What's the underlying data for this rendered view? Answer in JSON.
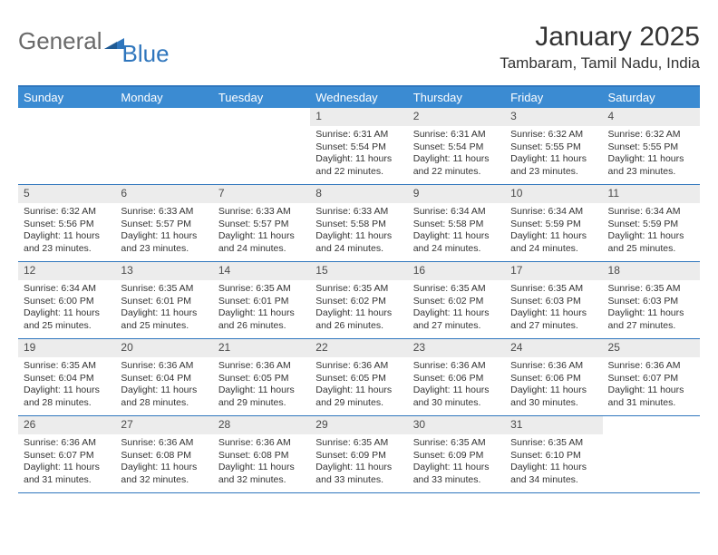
{
  "brand": {
    "word1": "General",
    "word2": "Blue"
  },
  "title": "January 2025",
  "location": "Tambaram, Tamil Nadu, India",
  "colors": {
    "header_bg": "#3b8bd2",
    "header_text": "#ffffff",
    "rule": "#2f76bd",
    "daynum_bg": "#ececec",
    "text": "#333333",
    "logo_grey": "#6a6a6a",
    "logo_blue": "#2f76bd"
  },
  "day_names": [
    "Sunday",
    "Monday",
    "Tuesday",
    "Wednesday",
    "Thursday",
    "Friday",
    "Saturday"
  ],
  "weeks": [
    [
      {
        "n": "",
        "sr": "",
        "ss": "",
        "dl": ""
      },
      {
        "n": "",
        "sr": "",
        "ss": "",
        "dl": ""
      },
      {
        "n": "",
        "sr": "",
        "ss": "",
        "dl": ""
      },
      {
        "n": "1",
        "sr": "Sunrise: 6:31 AM",
        "ss": "Sunset: 5:54 PM",
        "dl": "Daylight: 11 hours and 22 minutes."
      },
      {
        "n": "2",
        "sr": "Sunrise: 6:31 AM",
        "ss": "Sunset: 5:54 PM",
        "dl": "Daylight: 11 hours and 22 minutes."
      },
      {
        "n": "3",
        "sr": "Sunrise: 6:32 AM",
        "ss": "Sunset: 5:55 PM",
        "dl": "Daylight: 11 hours and 23 minutes."
      },
      {
        "n": "4",
        "sr": "Sunrise: 6:32 AM",
        "ss": "Sunset: 5:55 PM",
        "dl": "Daylight: 11 hours and 23 minutes."
      }
    ],
    [
      {
        "n": "5",
        "sr": "Sunrise: 6:32 AM",
        "ss": "Sunset: 5:56 PM",
        "dl": "Daylight: 11 hours and 23 minutes."
      },
      {
        "n": "6",
        "sr": "Sunrise: 6:33 AM",
        "ss": "Sunset: 5:57 PM",
        "dl": "Daylight: 11 hours and 23 minutes."
      },
      {
        "n": "7",
        "sr": "Sunrise: 6:33 AM",
        "ss": "Sunset: 5:57 PM",
        "dl": "Daylight: 11 hours and 24 minutes."
      },
      {
        "n": "8",
        "sr": "Sunrise: 6:33 AM",
        "ss": "Sunset: 5:58 PM",
        "dl": "Daylight: 11 hours and 24 minutes."
      },
      {
        "n": "9",
        "sr": "Sunrise: 6:34 AM",
        "ss": "Sunset: 5:58 PM",
        "dl": "Daylight: 11 hours and 24 minutes."
      },
      {
        "n": "10",
        "sr": "Sunrise: 6:34 AM",
        "ss": "Sunset: 5:59 PM",
        "dl": "Daylight: 11 hours and 24 minutes."
      },
      {
        "n": "11",
        "sr": "Sunrise: 6:34 AM",
        "ss": "Sunset: 5:59 PM",
        "dl": "Daylight: 11 hours and 25 minutes."
      }
    ],
    [
      {
        "n": "12",
        "sr": "Sunrise: 6:34 AM",
        "ss": "Sunset: 6:00 PM",
        "dl": "Daylight: 11 hours and 25 minutes."
      },
      {
        "n": "13",
        "sr": "Sunrise: 6:35 AM",
        "ss": "Sunset: 6:01 PM",
        "dl": "Daylight: 11 hours and 25 minutes."
      },
      {
        "n": "14",
        "sr": "Sunrise: 6:35 AM",
        "ss": "Sunset: 6:01 PM",
        "dl": "Daylight: 11 hours and 26 minutes."
      },
      {
        "n": "15",
        "sr": "Sunrise: 6:35 AM",
        "ss": "Sunset: 6:02 PM",
        "dl": "Daylight: 11 hours and 26 minutes."
      },
      {
        "n": "16",
        "sr": "Sunrise: 6:35 AM",
        "ss": "Sunset: 6:02 PM",
        "dl": "Daylight: 11 hours and 27 minutes."
      },
      {
        "n": "17",
        "sr": "Sunrise: 6:35 AM",
        "ss": "Sunset: 6:03 PM",
        "dl": "Daylight: 11 hours and 27 minutes."
      },
      {
        "n": "18",
        "sr": "Sunrise: 6:35 AM",
        "ss": "Sunset: 6:03 PM",
        "dl": "Daylight: 11 hours and 27 minutes."
      }
    ],
    [
      {
        "n": "19",
        "sr": "Sunrise: 6:35 AM",
        "ss": "Sunset: 6:04 PM",
        "dl": "Daylight: 11 hours and 28 minutes."
      },
      {
        "n": "20",
        "sr": "Sunrise: 6:36 AM",
        "ss": "Sunset: 6:04 PM",
        "dl": "Daylight: 11 hours and 28 minutes."
      },
      {
        "n": "21",
        "sr": "Sunrise: 6:36 AM",
        "ss": "Sunset: 6:05 PM",
        "dl": "Daylight: 11 hours and 29 minutes."
      },
      {
        "n": "22",
        "sr": "Sunrise: 6:36 AM",
        "ss": "Sunset: 6:05 PM",
        "dl": "Daylight: 11 hours and 29 minutes."
      },
      {
        "n": "23",
        "sr": "Sunrise: 6:36 AM",
        "ss": "Sunset: 6:06 PM",
        "dl": "Daylight: 11 hours and 30 minutes."
      },
      {
        "n": "24",
        "sr": "Sunrise: 6:36 AM",
        "ss": "Sunset: 6:06 PM",
        "dl": "Daylight: 11 hours and 30 minutes."
      },
      {
        "n": "25",
        "sr": "Sunrise: 6:36 AM",
        "ss": "Sunset: 6:07 PM",
        "dl": "Daylight: 11 hours and 31 minutes."
      }
    ],
    [
      {
        "n": "26",
        "sr": "Sunrise: 6:36 AM",
        "ss": "Sunset: 6:07 PM",
        "dl": "Daylight: 11 hours and 31 minutes."
      },
      {
        "n": "27",
        "sr": "Sunrise: 6:36 AM",
        "ss": "Sunset: 6:08 PM",
        "dl": "Daylight: 11 hours and 32 minutes."
      },
      {
        "n": "28",
        "sr": "Sunrise: 6:36 AM",
        "ss": "Sunset: 6:08 PM",
        "dl": "Daylight: 11 hours and 32 minutes."
      },
      {
        "n": "29",
        "sr": "Sunrise: 6:35 AM",
        "ss": "Sunset: 6:09 PM",
        "dl": "Daylight: 11 hours and 33 minutes."
      },
      {
        "n": "30",
        "sr": "Sunrise: 6:35 AM",
        "ss": "Sunset: 6:09 PM",
        "dl": "Daylight: 11 hours and 33 minutes."
      },
      {
        "n": "31",
        "sr": "Sunrise: 6:35 AM",
        "ss": "Sunset: 6:10 PM",
        "dl": "Daylight: 11 hours and 34 minutes."
      },
      {
        "n": "",
        "sr": "",
        "ss": "",
        "dl": ""
      }
    ]
  ]
}
